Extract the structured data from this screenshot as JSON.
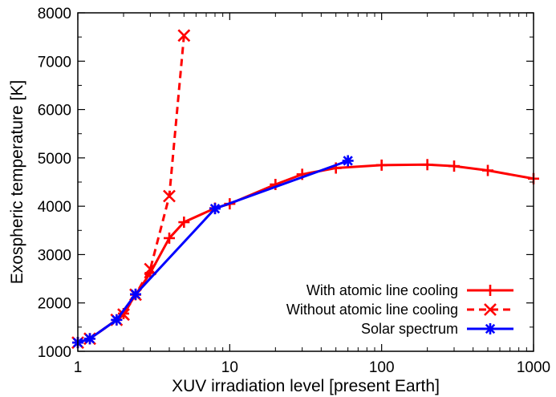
{
  "chart_data": {
    "type": "line",
    "title": "",
    "xlabel": "XUV irradiation level [present Earth]",
    "ylabel": "Exospheric temperature [K]",
    "x_scale": "log",
    "xlim": [
      1,
      1000
    ],
    "ylim": [
      1000,
      8000
    ],
    "x_ticks": [
      {
        "value": 1,
        "label": "1"
      },
      {
        "value": 10,
        "label": "10"
      },
      {
        "value": 100,
        "label": "100"
      },
      {
        "value": 1000,
        "label": "1000"
      }
    ],
    "y_ticks": [
      {
        "value": 1000,
        "label": "1000"
      },
      {
        "value": 2000,
        "label": "2000"
      },
      {
        "value": 3000,
        "label": "3000"
      },
      {
        "value": 4000,
        "label": "4000"
      },
      {
        "value": 5000,
        "label": "5000"
      },
      {
        "value": 6000,
        "label": "6000"
      },
      {
        "value": 7000,
        "label": "7000"
      },
      {
        "value": 8000,
        "label": "8000"
      }
    ],
    "grid": false,
    "legend_position": "bottom-right",
    "series": [
      {
        "name": "With atomic line cooling",
        "color": "#ff0000",
        "line_style": "solid",
        "marker": "plus",
        "x": [
          1,
          1.2,
          1.8,
          2,
          2.4,
          3,
          4,
          5,
          8,
          10,
          20,
          30,
          50,
          100,
          200,
          300,
          500,
          1000
        ],
        "y": [
          1180,
          1260,
          1650,
          1780,
          2170,
          2620,
          3340,
          3670,
          3960,
          4050,
          4450,
          4660,
          4790,
          4850,
          4860,
          4830,
          4740,
          4570
        ]
      },
      {
        "name": "Without atomic line cooling",
        "color": "#ff0000",
        "line_style": "dashed",
        "marker": "x",
        "x": [
          1,
          1.2,
          1.8,
          2,
          2.4,
          3,
          4,
          5
        ],
        "y": [
          1180,
          1260,
          1650,
          1760,
          2170,
          2700,
          4210,
          7530
        ]
      },
      {
        "name": "Solar spectrum",
        "color": "#0000ff",
        "line_style": "solid",
        "marker": "star",
        "x": [
          1,
          1.2,
          1.8,
          2.4,
          8,
          60
        ],
        "y": [
          1180,
          1260,
          1650,
          2180,
          3950,
          4940
        ]
      }
    ]
  }
}
